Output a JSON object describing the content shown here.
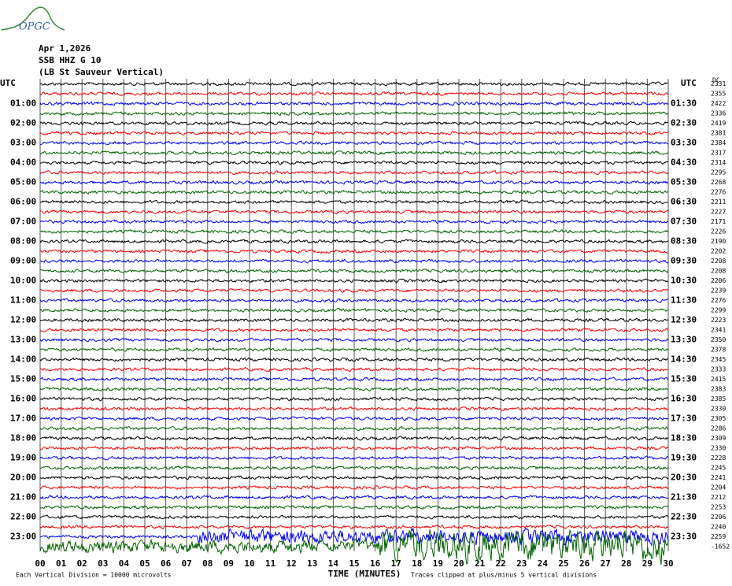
{
  "chart_data": {
    "type": "helicorder",
    "logo": "OPGC",
    "date": "Apr 1,2026",
    "station": "SSB HHZ G 10",
    "location": "(LB St Sauveur Vertical)",
    "left_header": "UTC",
    "right_header": "UTC",
    "offset_header": "DC",
    "xlabel": "TIME (MINUTES)",
    "scale_note": "Each Vertical Division = 10000 microvolts",
    "clip_note": "Traces clipped at plus/minus 5 vertical divisions",
    "row_labels_left": [
      "01:00",
      "02:00",
      "03:00",
      "04:00",
      "05:00",
      "06:00",
      "07:00",
      "08:00",
      "09:00",
      "10:00",
      "11:00",
      "12:00",
      "13:00",
      "14:00",
      "15:00",
      "16:00",
      "17:00",
      "18:00",
      "19:00",
      "20:00",
      "21:00",
      "22:00",
      "23:00"
    ],
    "row_labels_right": [
      "01:30",
      "02:30",
      "03:30",
      "04:30",
      "05:30",
      "06:30",
      "07:30",
      "08:30",
      "09:30",
      "10:30",
      "11:30",
      "12:30",
      "13:30",
      "14:30",
      "15:30",
      "16:30",
      "17:30",
      "18:30",
      "19:30",
      "20:30",
      "21:30",
      "22:30",
      "23:30"
    ],
    "trace_offsets": [
      2331,
      2355,
      2422,
      2336,
      2419,
      2381,
      2384,
      2317,
      2314,
      2295,
      2268,
      2276,
      2211,
      2227,
      2171,
      2226,
      2190,
      2202,
      2208,
      2208,
      2206,
      2239,
      2276,
      2299,
      2223,
      2341,
      2350,
      2378,
      2345,
      2333,
      2415,
      2383,
      2385,
      2330,
      2305,
      2286,
      2309,
      2330,
      2228,
      2245,
      2241,
      2204,
      2212,
      2253,
      2206,
      2240,
      2259,
      -1652
    ],
    "trace_colors": [
      "#000000",
      "#ff0000",
      "#0000ff",
      "#006400"
    ],
    "xlim": [
      0,
      30
    ],
    "xticks": [
      {
        "value": 0,
        "label": "00"
      },
      {
        "value": 1,
        "label": "01"
      },
      {
        "value": 2,
        "label": "02"
      },
      {
        "value": 3,
        "label": "03"
      },
      {
        "value": 4,
        "label": "04"
      },
      {
        "value": 5,
        "label": "05"
      },
      {
        "value": 6,
        "label": "06"
      },
      {
        "value": 7,
        "label": "07"
      },
      {
        "value": 8,
        "label": "08"
      },
      {
        "value": 9,
        "label": "09"
      },
      10,
      11,
      12,
      13,
      14,
      15,
      16,
      17,
      18,
      19,
      20,
      21,
      22,
      23,
      24,
      25,
      26,
      27,
      28,
      29,
      30
    ]
  }
}
